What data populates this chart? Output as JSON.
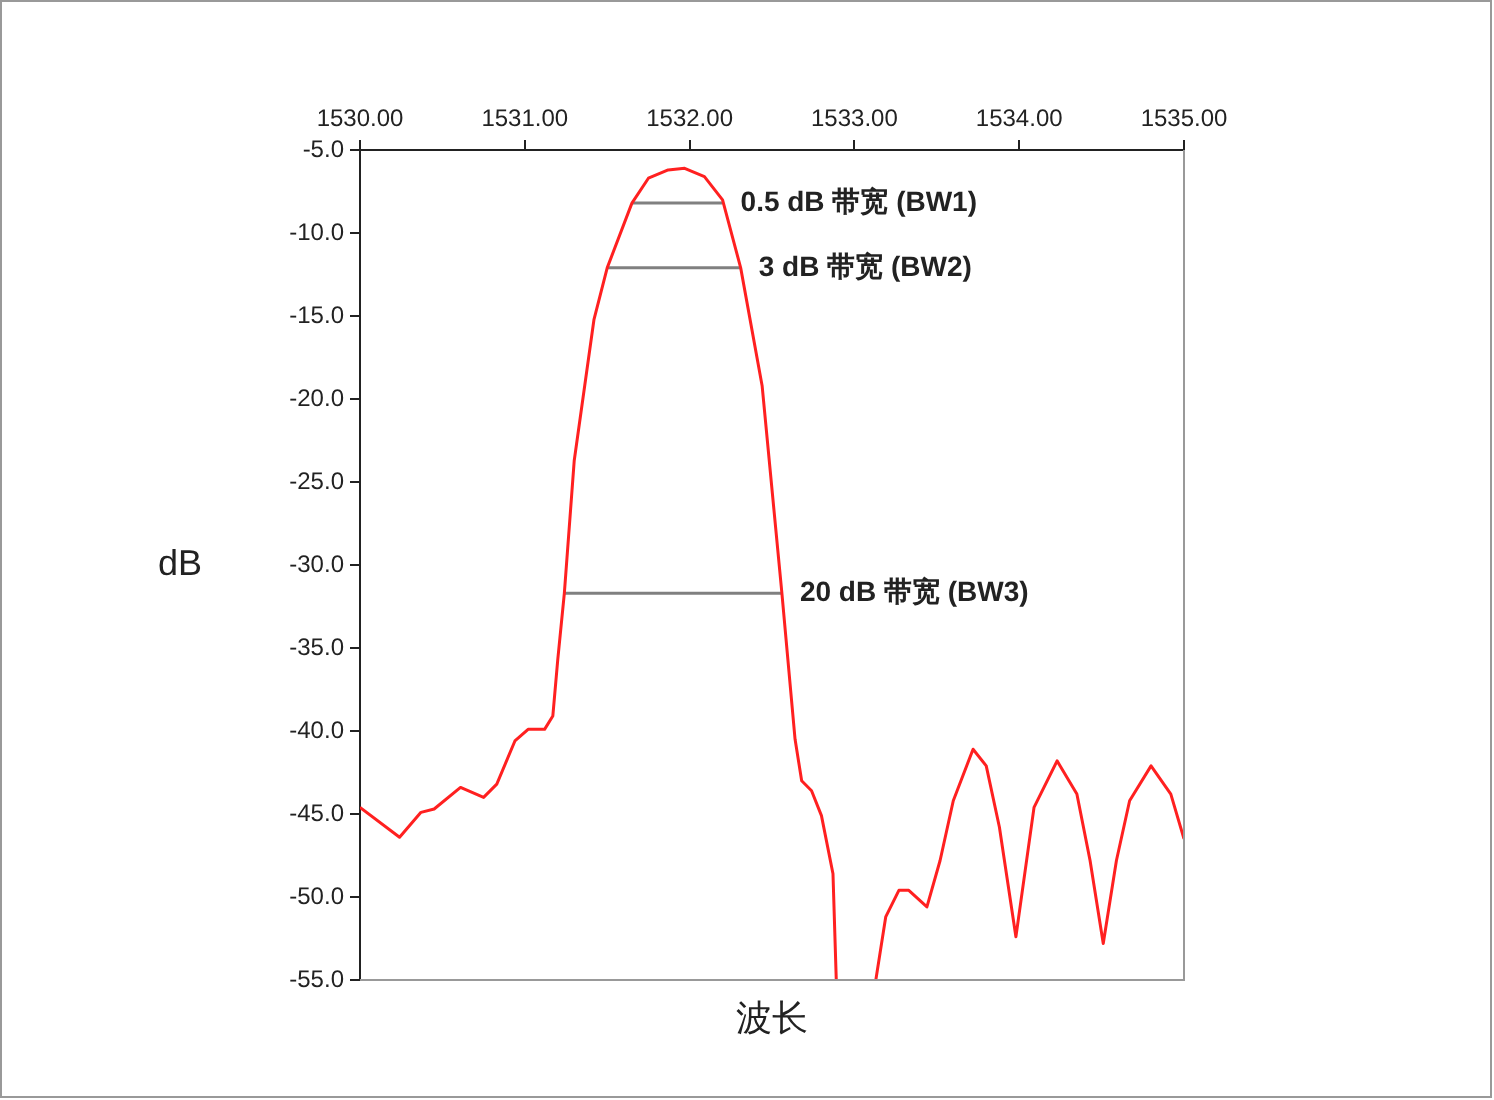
{
  "chart_data": {
    "type": "line",
    "xlabel": "波长",
    "ylabel": "dB",
    "xlim": [
      1530,
      1535
    ],
    "ylim": [
      -55,
      -5
    ],
    "xticks": [
      {
        "value": 1530,
        "label": "1530.00"
      },
      {
        "value": 1531,
        "label": "1531.00"
      },
      {
        "value": 1532,
        "label": "1532.00"
      },
      {
        "value": 1533,
        "label": "1533.00"
      },
      {
        "value": 1534,
        "label": "1534.00"
      },
      {
        "value": 1535,
        "label": "1535.00"
      }
    ],
    "yticks": [
      {
        "value": -5,
        "label": "-5.0"
      },
      {
        "value": -10,
        "label": "-10.0"
      },
      {
        "value": -15,
        "label": "-15.0"
      },
      {
        "value": -20,
        "label": "-20.0"
      },
      {
        "value": -25,
        "label": "-25.0"
      },
      {
        "value": -30,
        "label": "-30.0"
      },
      {
        "value": -35,
        "label": "-35.0"
      },
      {
        "value": -40,
        "label": "-40.0"
      },
      {
        "value": -45,
        "label": "-45.0"
      },
      {
        "value": -50,
        "label": "-50.0"
      },
      {
        "value": -55,
        "label": "-55.0"
      }
    ],
    "grid": false,
    "legend": false,
    "marker": "none",
    "line_style": "solid",
    "series": [
      {
        "color": "#ff2020",
        "x": [
          1530,
          1530.24,
          1530.37,
          1530.45,
          1530.61,
          1530.75,
          1530.83,
          1530.94,
          1531.02,
          1531.12,
          1531.17,
          1531.2,
          1531.24,
          1531.3,
          1531.42,
          1531.5,
          1531.65,
          1531.75,
          1531.87,
          1531.97,
          1532.09,
          1532.2,
          1532.31,
          1532.44,
          1532.56,
          1532.64,
          1532.68,
          1532.74,
          1532.8,
          1532.87,
          1532.89,
          1533.0,
          1533.13,
          1533.19,
          1533.27,
          1533.33,
          1533.44,
          1533.52,
          1533.6,
          1533.72,
          1533.8,
          1533.88,
          1533.98,
          1534.09,
          1534.23,
          1534.35,
          1534.43,
          1534.51,
          1534.59,
          1534.67,
          1534.8,
          1534.92,
          1535
        ],
        "values": [
          -44.6,
          -46.4,
          -44.9,
          -44.7,
          -43.4,
          -44,
          -43.2,
          -40.6,
          -39.9,
          -39.9,
          -39.1,
          -35.7,
          -31.7,
          -23.7,
          -15.2,
          -12.1,
          -8.2,
          -6.7,
          -6.2,
          -6.1,
          -6.6,
          -8,
          -12.1,
          -19.2,
          -31.7,
          -40.5,
          -43,
          -43.6,
          -45.1,
          -48.6,
          -55,
          null,
          -55,
          -51.2,
          -49.6,
          -49.6,
          -50.6,
          -47.8,
          -44.2,
          -41.1,
          -42.1,
          -45.8,
          -52.4,
          -44.6,
          -41.8,
          -43.8,
          -47.8,
          -52.8,
          -47.8,
          -44.2,
          -42.1,
          -43.8,
          -46.5
        ]
      },
      {
        "color": "#808080",
        "x": [
          1531.65,
          1532.2
        ],
        "values": [
          -8.2,
          -8.2
        ]
      },
      {
        "color": "#808080",
        "x": [
          1531.5,
          1532.31
        ],
        "values": [
          -12.1,
          -12.1
        ]
      },
      {
        "color": "#808080",
        "x": [
          1531.24,
          1532.56
        ],
        "values": [
          -31.7,
          -31.7
        ]
      }
    ],
    "annotations": [
      {
        "text": "0.5 dB 带宽 (BW1)",
        "x": 1532.2,
        "y": -8.2
      },
      {
        "text": "3 dB 带宽 (BW2)",
        "x": 1532.31,
        "y": -12.1
      },
      {
        "text": "20 dB 带宽 (BW3)",
        "x": 1532.56,
        "y": -31.7
      }
    ]
  }
}
